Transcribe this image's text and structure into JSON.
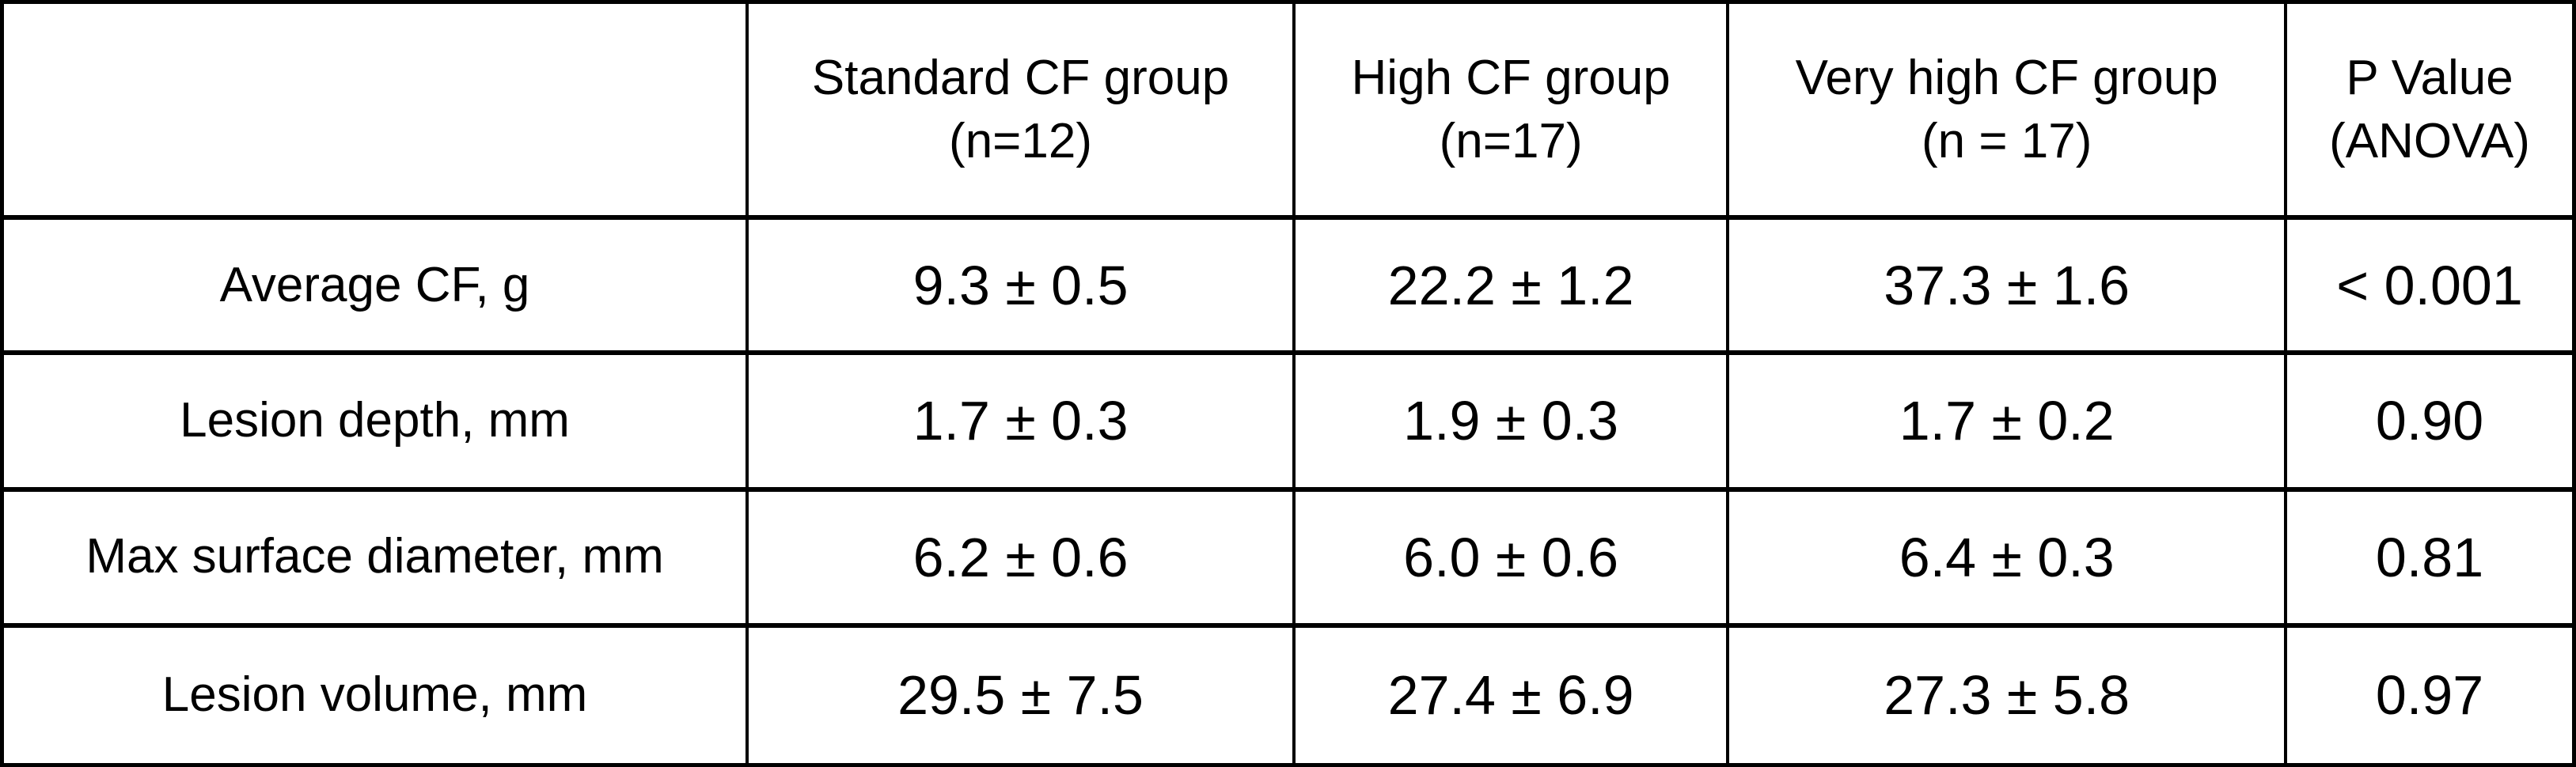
{
  "chart_data": {
    "type": "table",
    "columns": [
      {
        "label": "",
        "sub": ""
      },
      {
        "label": "Standard CF group",
        "sub": "(n=12)"
      },
      {
        "label": "High CF group",
        "sub": "(n=17)"
      },
      {
        "label": "Very high CF group",
        "sub": "(n = 17)"
      },
      {
        "label": "P Value",
        "sub": "(ANOVA)"
      }
    ],
    "rows": [
      {
        "label": "Average CF, g",
        "values": [
          "9.3 ± 0.5",
          "22.2 ± 1.2",
          "37.3 ± 1.6",
          "< 0.001"
        ]
      },
      {
        "label": "Lesion depth, mm",
        "values": [
          "1.7 ± 0.3",
          "1.9 ± 0.3",
          "1.7 ± 0.2",
          "0.90"
        ]
      },
      {
        "label": "Max surface diameter, mm",
        "values": [
          "6.2 ± 0.6",
          "6.0 ± 0.6",
          "6.4 ± 0.3",
          "0.81"
        ]
      },
      {
        "label": "Lesion volume, mm",
        "values": [
          "29.5 ± 7.5",
          "27.4 ± 6.9",
          "27.3 ± 5.8",
          "0.97"
        ]
      }
    ]
  },
  "colors": {
    "border": "#000000",
    "text": "#000000",
    "background": "#ffffff"
  }
}
